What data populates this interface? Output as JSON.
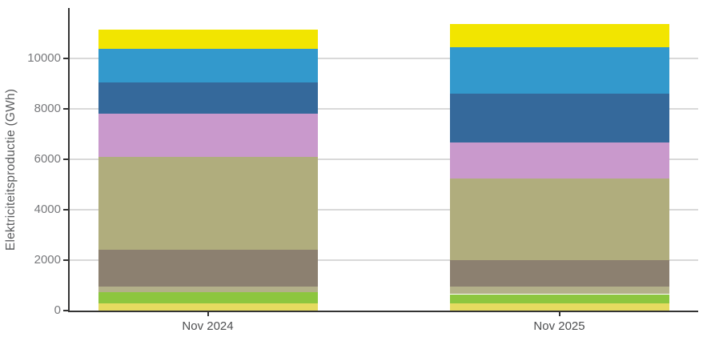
{
  "figure": {
    "background_color": "#ffffff",
    "axis_line_color": "#333333",
    "gridline_color": "#d9d9d9",
    "ytick_label_color": "#77787b",
    "xtick_label_color": "#4d4e50",
    "axis_title_color": "#5b5c5e"
  },
  "chart_data": {
    "type": "bar",
    "stacked": true,
    "orientation": "vertical",
    "title": "",
    "xlabel": "",
    "ylabel": "Elektriciteitsproductie (GWh)",
    "categories": [
      "Nov 2024",
      "Nov 2025"
    ],
    "series": [
      {
        "name": "sand-yellow",
        "color": "#e5db60",
        "values": [
          300,
          300
        ]
      },
      {
        "name": "bright-green",
        "color": "#8dc63f",
        "values": [
          440,
          350
        ]
      },
      {
        "name": "light-khaki",
        "color": "#b3b089",
        "values": [
          200,
          290
        ]
      },
      {
        "name": "taupe-brown",
        "color": "#8c8070",
        "values": [
          1460,
          1060
        ]
      },
      {
        "name": "khaki-olive",
        "color": "#b0ad7d",
        "values": [
          3700,
          3230
        ]
      },
      {
        "name": "lilac-pink",
        "color": "#c999cc",
        "values": [
          1700,
          1440
        ]
      },
      {
        "name": "dark-blue",
        "color": "#35699b",
        "values": [
          1250,
          1950
        ]
      },
      {
        "name": "steel-light-blue",
        "color": "#3399cc",
        "values": [
          1330,
          1840
        ]
      },
      {
        "name": "bright-yellow",
        "color": "#f2e500",
        "values": [
          770,
          920
        ]
      }
    ],
    "yticks": [
      0,
      2000,
      4000,
      6000,
      8000,
      10000
    ],
    "ylim": [
      0,
      12000
    ],
    "grid": true,
    "legend": false
  }
}
